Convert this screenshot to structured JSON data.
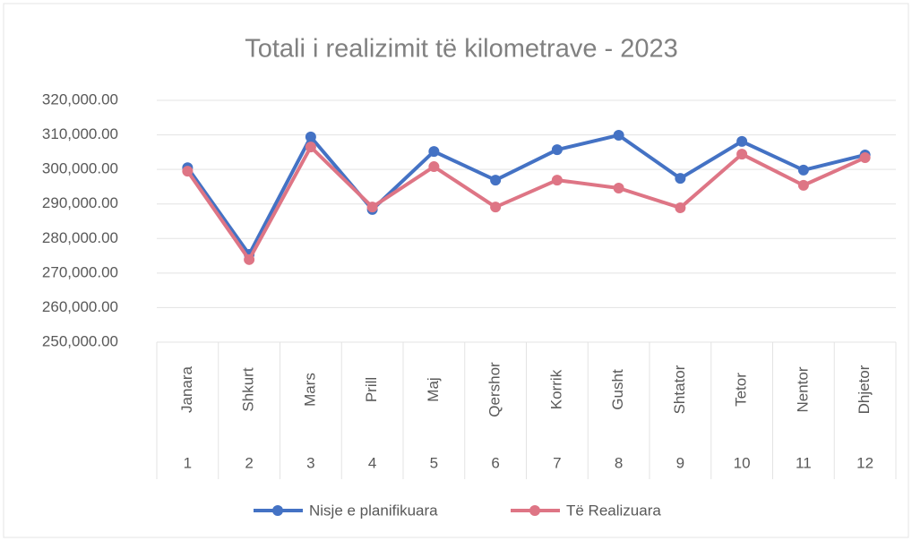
{
  "chart_data": {
    "type": "line",
    "title": "Totali i realizimit të kilometrave - 2023",
    "categories": [
      "Janara",
      "Shkurt",
      "Mars",
      "Prill",
      "Maj",
      "Qershor",
      "Korrik",
      "Gusht",
      "Shtator",
      "Tetor",
      "Nentor",
      "Dhjetor"
    ],
    "category_numbers": [
      1,
      2,
      3,
      4,
      5,
      6,
      7,
      8,
      9,
      10,
      11,
      12
    ],
    "series": [
      {
        "name": "Nisje e planifikuara",
        "color": "#4472c4",
        "values": [
          300500,
          275400,
          309400,
          288400,
          305200,
          296900,
          305700,
          309900,
          297400,
          308100,
          299800,
          304200
        ]
      },
      {
        "name": "Të Realizuara",
        "color": "#de7585",
        "values": [
          299500,
          273900,
          306500,
          289100,
          300800,
          289100,
          296900,
          294600,
          288900,
          304400,
          295400,
          303400
        ]
      }
    ],
    "ylim": [
      250000,
      320000
    ],
    "yticks": [
      {
        "value": 250000,
        "label": "250,000.00"
      },
      {
        "value": 260000,
        "label": "260,000.00"
      },
      {
        "value": 270000,
        "label": "270,000.00"
      },
      {
        "value": 280000,
        "label": "280,000.00"
      },
      {
        "value": 290000,
        "label": "290,000.00"
      },
      {
        "value": 300000,
        "label": "300,000.00"
      },
      {
        "value": 310000,
        "label": "310,000.00"
      },
      {
        "value": 320000,
        "label": "320,000.00"
      }
    ],
    "grid": true,
    "legend": "bottom"
  }
}
